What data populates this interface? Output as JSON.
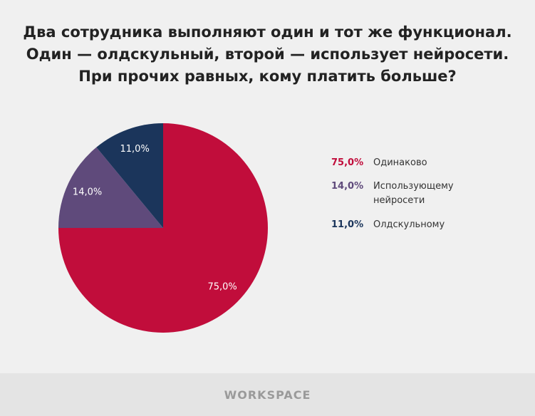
{
  "chart_data": {
    "type": "pie",
    "title": [
      "Два сотрудника выполняют один и тот же функционал.",
      "Один — олдскульный, второй — использует нейросети.",
      "При прочих равных, кому платить больше?"
    ],
    "categories": [
      "Одинаково",
      "Использующему нейросети",
      "Олдскульному"
    ],
    "values": [
      75,
      14,
      11
    ],
    "value_labels": [
      "75,0%",
      "14,0%",
      "11,0%"
    ],
    "colors": [
      "#c10d3b",
      "#5f4a7b",
      "#1b355b"
    ],
    "legend": "right"
  },
  "footer": "WORKSPACE"
}
